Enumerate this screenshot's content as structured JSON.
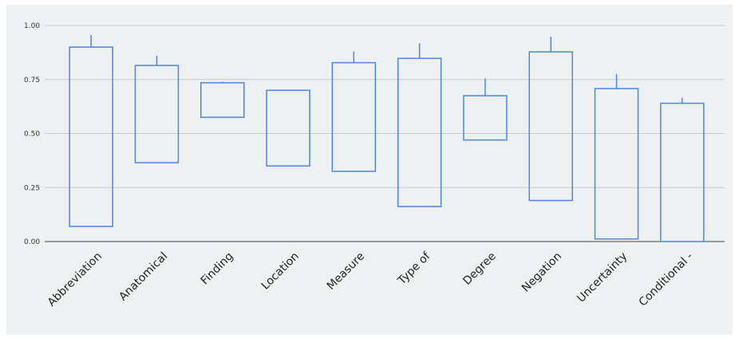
{
  "chart_data": {
    "type": "box",
    "title": "",
    "xlabel": "",
    "ylabel": "",
    "ylim": [
      0,
      1
    ],
    "yticks": [
      "0.00",
      "0.25",
      "0.50",
      "0.75",
      "1.00"
    ],
    "grid": true,
    "categories": [
      "Abbreviation",
      "Anatomical",
      "Finding",
      "Location",
      "Measure",
      "Type of",
      "Degree",
      "Negation",
      "Uncertainty",
      "Conditional -"
    ],
    "boxes": [
      {
        "low": 0.07,
        "high": 0.9,
        "whisker": 0.955
      },
      {
        "low": 0.365,
        "high": 0.815,
        "whisker": 0.86
      },
      {
        "low": 0.575,
        "high": 0.735,
        "whisker": 0.74
      },
      {
        "low": 0.35,
        "high": 0.7,
        "whisker": 0.7
      },
      {
        "low": 0.325,
        "high": 0.828,
        "whisker": 0.88
      },
      {
        "low": 0.162,
        "high": 0.848,
        "whisker": 0.918
      },
      {
        "low": 0.47,
        "high": 0.675,
        "whisker": 0.755
      },
      {
        "low": 0.19,
        "high": 0.878,
        "whisker": 0.948
      },
      {
        "low": 0.012,
        "high": 0.708,
        "whisker": 0.775
      },
      {
        "low": 0.0,
        "high": 0.64,
        "whisker": 0.665
      }
    ],
    "colors": {
      "background": "#edf1f2",
      "grid": "#c9cdd0",
      "axis": "#444444",
      "box": "#4a86e8"
    }
  }
}
